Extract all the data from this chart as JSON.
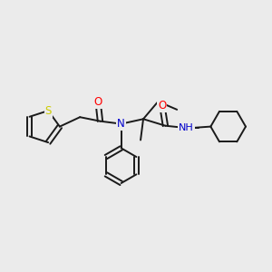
{
  "background_color": "#ebebeb",
  "bond_color": "#1a1a1a",
  "atom_colors": {
    "S": "#cccc00",
    "O": "#ff0000",
    "N": "#0000cc",
    "C": "#1a1a1a"
  },
  "figsize": [
    3.0,
    3.0
  ],
  "dpi": 100
}
